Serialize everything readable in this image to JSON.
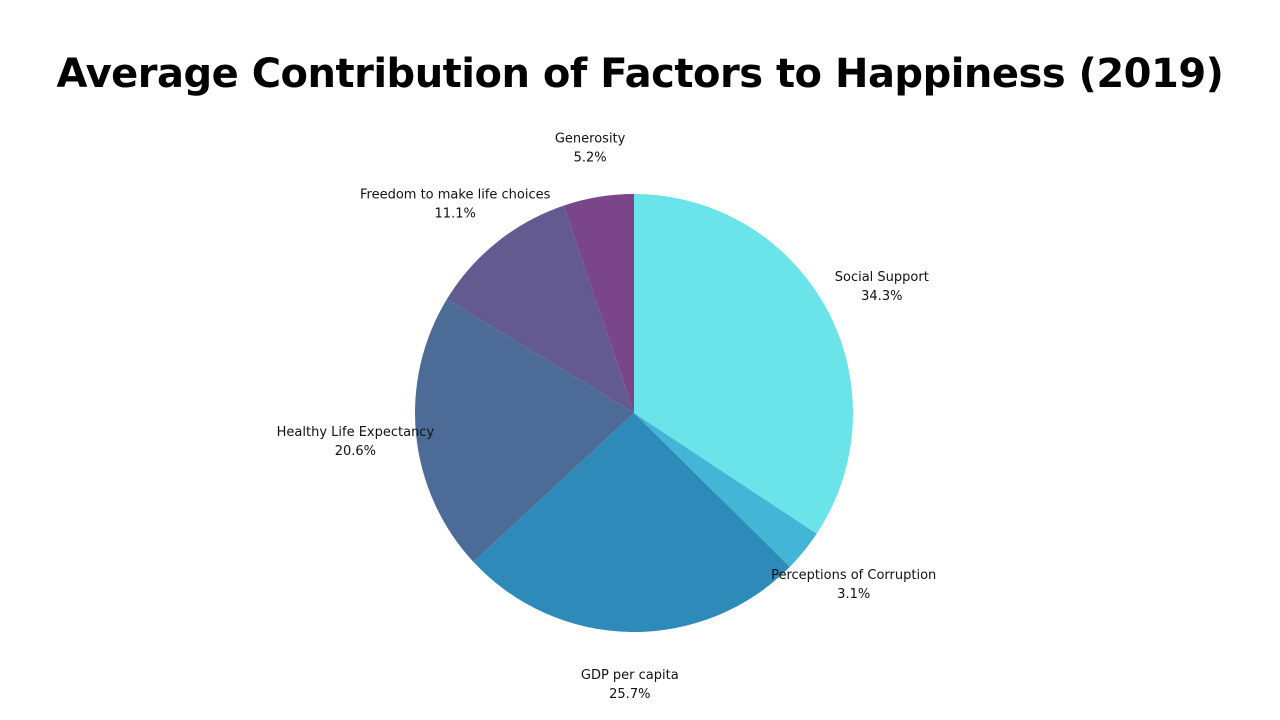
{
  "chart_data": {
    "type": "pie",
    "title": "Average Contribution of Factors to Happiness (2019)",
    "slices": [
      {
        "label": "Social Support",
        "value": 34.3,
        "value_label": "34.3%",
        "color": "#6ae4e8"
      },
      {
        "label": "Perceptions of Corruption",
        "value": 3.1,
        "value_label": "3.1%",
        "color": "#43b5d6"
      },
      {
        "label": "GDP per capita",
        "value": 25.7,
        "value_label": "25.7%",
        "color": "#2e8bb9"
      },
      {
        "label": "Healthy Life Expectancy",
        "value": 20.6,
        "value_label": "20.6%",
        "color": "#4c6c97"
      },
      {
        "label": "Freedom to make life choices",
        "value": 11.1,
        "value_label": "11.1%",
        "color": "#635a8f"
      },
      {
        "label": "Generosity",
        "value": 5.2,
        "value_label": "5.2%",
        "color": "#7b4689"
      }
    ],
    "start": "top",
    "direction": "clockwise",
    "legend": "none"
  }
}
